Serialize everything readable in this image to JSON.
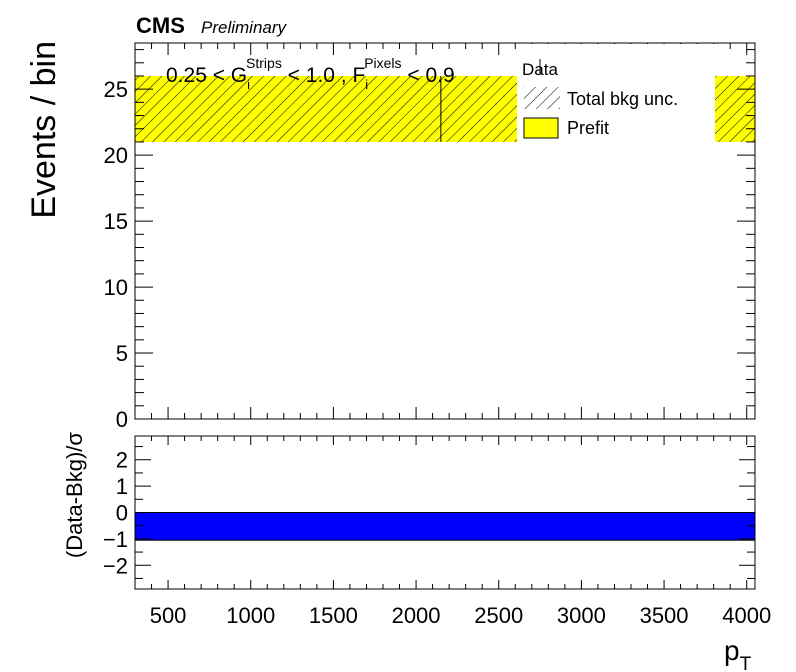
{
  "header": {
    "experiment": "CMS",
    "status": "Preliminary"
  },
  "selection": {
    "part1": "0.25 < G",
    "sub1": "i",
    "sup1": "Strips",
    "part2": " < 1.0 , F",
    "sub2": "i",
    "sup2": "Pixels",
    "part3": " < 0.9"
  },
  "legend": {
    "data": "Data",
    "bkg_unc": "Total bkg unc.",
    "prefit": "Prefit"
  },
  "colors": {
    "prefit_fill": "#ffff00",
    "ratio_band": "#0000ff",
    "frame": "#000000"
  },
  "chart_data": [
    {
      "type": "bar",
      "panel": "main",
      "xlabel": "p",
      "xlabel_sub": "T",
      "ylabel": "Events / bin",
      "xlim": [
        300,
        4050
      ],
      "ylim": [
        0,
        28.5
      ],
      "yticks": [
        "0",
        "5",
        "10",
        "15",
        "20",
        "25"
      ],
      "series": [
        {
          "name": "Prefit",
          "bins": [
            {
              "xlow": 300,
              "xhigh": 2150,
              "low": 21,
              "high": 26
            },
            {
              "xlow": 2150,
              "xhigh": 4050,
              "low": 21,
              "high": 26
            }
          ]
        }
      ],
      "hatched_uncertainty": true
    },
    {
      "type": "area",
      "panel": "ratio",
      "ylabel": "(Data-Bkg)/σ",
      "xlim": [
        300,
        4050
      ],
      "ylim": [
        -2.9,
        2.9
      ],
      "yticks": [
        "−2",
        "−1",
        "0",
        "1",
        "2"
      ],
      "xticks": [
        "500",
        "1000",
        "1500",
        "2000",
        "2500",
        "3000",
        "3500",
        "4000"
      ],
      "band": {
        "low": -1.05,
        "high": 0.0
      }
    }
  ]
}
